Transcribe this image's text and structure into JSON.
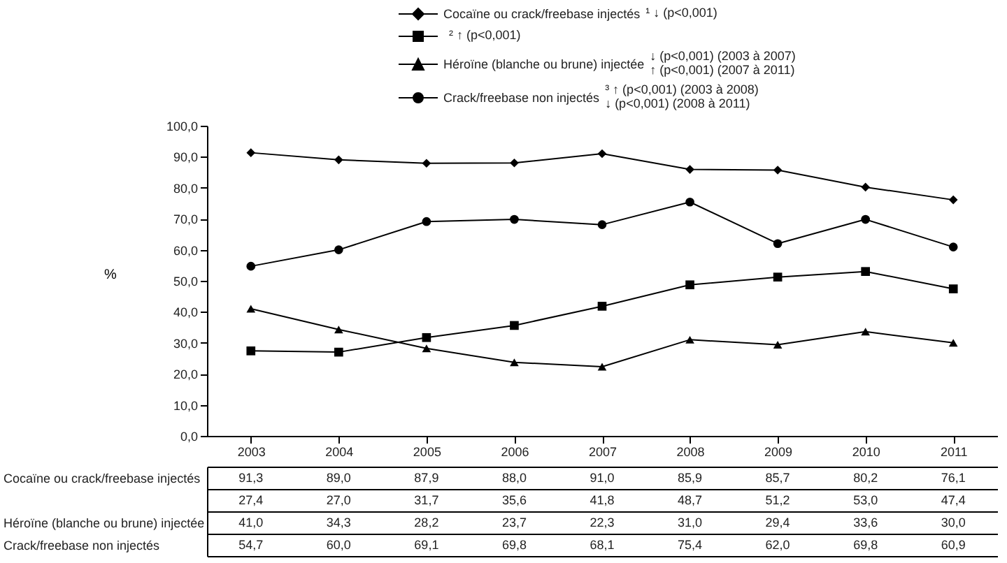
{
  "chart_data": {
    "type": "line",
    "categories": [
      "2003",
      "2004",
      "2005",
      "2006",
      "2007",
      "2008",
      "2009",
      "2010",
      "2011"
    ],
    "ylabel": "%",
    "ylim": [
      0,
      100
    ],
    "yticks": [
      {
        "value": 0,
        "label": "0,0"
      },
      {
        "value": 10,
        "label": "10,0"
      },
      {
        "value": 20,
        "label": "20,0"
      },
      {
        "value": 30,
        "label": "30,0"
      },
      {
        "value": 40,
        "label": "40,0"
      },
      {
        "value": 50,
        "label": "50,0"
      },
      {
        "value": 60,
        "label": "60,0"
      },
      {
        "value": 70,
        "label": "70,0"
      },
      {
        "value": 80,
        "label": "80,0"
      },
      {
        "value": 90,
        "label": "90,0"
      },
      {
        "value": 100,
        "label": "100,0"
      }
    ],
    "grid": false,
    "legend": "top",
    "series": [
      {
        "name": "Cocaïne ou crack/freebase injectés",
        "color": "#000000",
        "marker": "diamond",
        "values": [
          91.3,
          89.0,
          87.9,
          88.0,
          91.0,
          85.9,
          85.7,
          80.2,
          76.1
        ],
        "value_labels": [
          "91,3",
          "89,0",
          "87,9",
          "88,0",
          "91,0",
          "85,9",
          "85,7",
          "80,2",
          "76,1"
        ]
      },
      {
        "color": "#000000",
        "marker": "square",
        "values": [
          27.4,
          27.0,
          31.7,
          35.6,
          41.8,
          48.7,
          51.2,
          53.0,
          47.4
        ],
        "value_labels": [
          "27,4",
          "27,0",
          "31,7",
          "35,6",
          "41,8",
          "48,7",
          "51,2",
          "53,0",
          "47,4"
        ]
      },
      {
        "name": "Héroïne (blanche ou brune) injectée",
        "color": "#000000",
        "marker": "triangle",
        "values": [
          41.0,
          34.3,
          28.2,
          23.7,
          22.3,
          31.0,
          29.4,
          33.6,
          30.0
        ],
        "value_labels": [
          "41,0",
          "34,3",
          "28,2",
          "23,7",
          "22,3",
          "31,0",
          "29,4",
          "33,6",
          "30,0"
        ]
      },
      {
        "name": "Crack/freebase non injectés",
        "color": "#000000",
        "marker": "circle",
        "values": [
          54.7,
          60.0,
          69.1,
          69.8,
          68.1,
          75.4,
          62.0,
          69.8,
          60.9
        ],
        "value_labels": [
          "54,7",
          "60,0",
          "69,1",
          "69,8",
          "68,1",
          "75,4",
          "62,0",
          "69,8",
          "60,9"
        ]
      }
    ],
    "annotations": [
      "¹ ↓ (p<0,001)",
      "² ↑ (p<0,001)",
      "↓ (p<0,001) (2003 à 2007)\n↑ (p<0,001) (2007 à 2011)",
      "³ ↑ (p<0,001) (2003 à 2008)\n↓ (p<0,001) (2008 à 2011)"
    ]
  }
}
